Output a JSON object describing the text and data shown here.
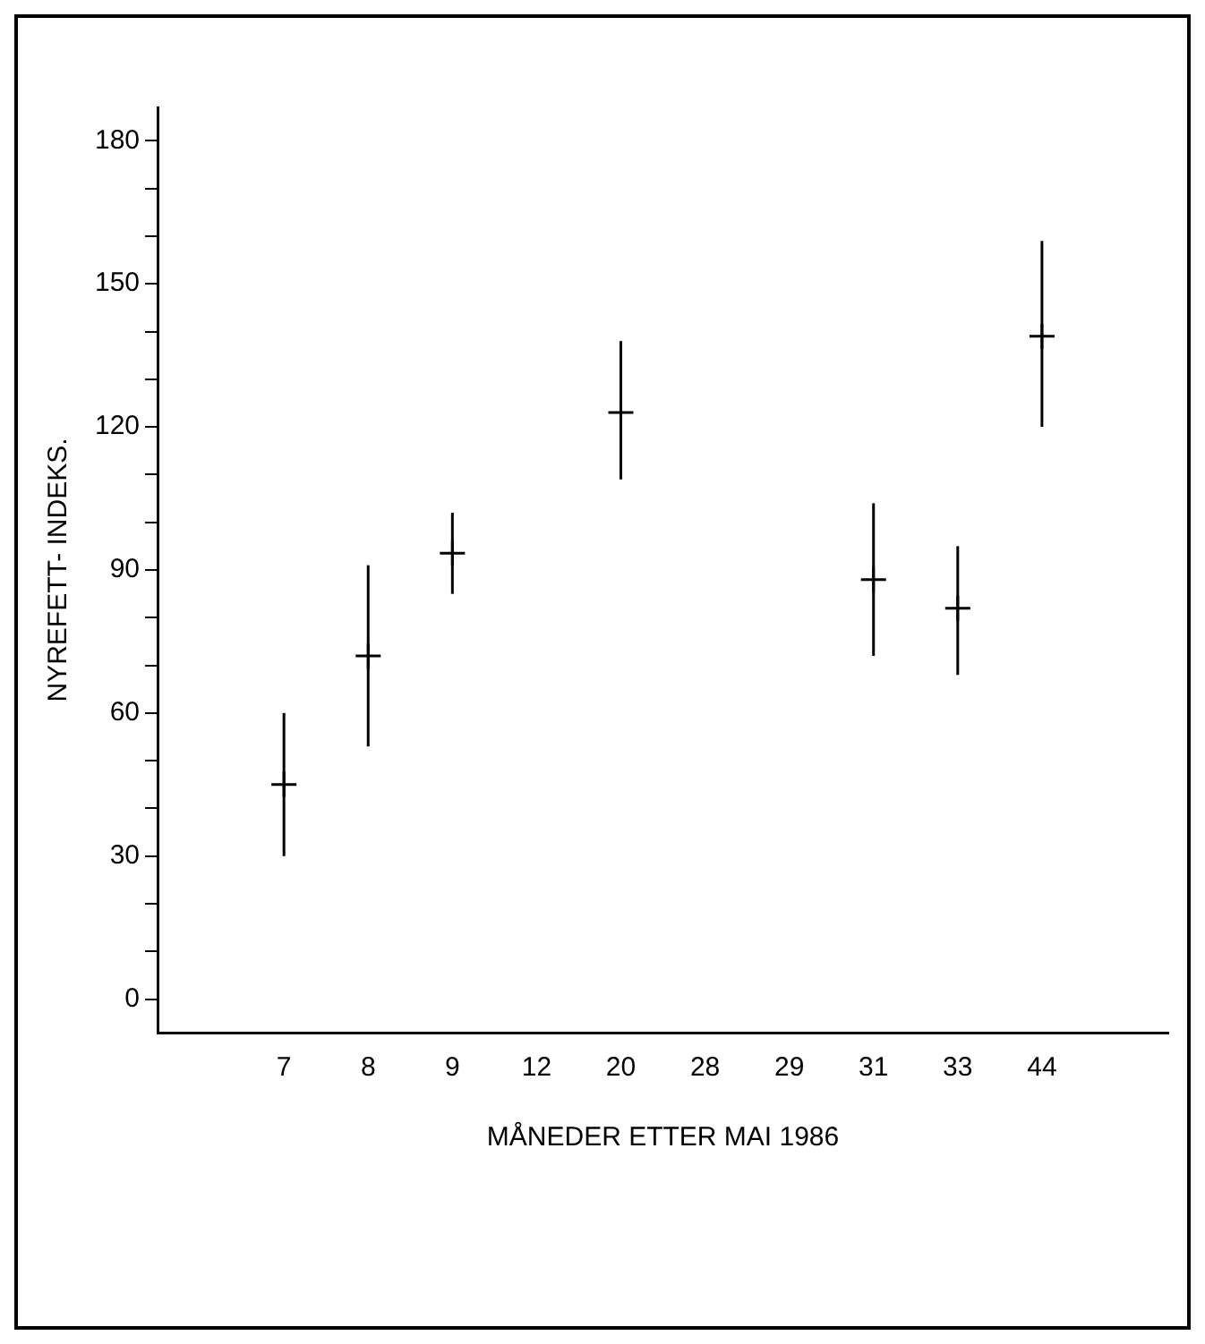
{
  "chart_data": {
    "type": "scatter",
    "xlabel": "MÅNEDER ETTER MAI 1986",
    "ylabel": "NYREFETT- INDEKS.",
    "categories": [
      null,
      "7",
      "8",
      "9",
      "12",
      "20",
      "28",
      "29",
      "31",
      "33",
      "44",
      null
    ],
    "values": [
      null,
      45,
      72,
      93.5,
      null,
      123,
      null,
      null,
      88,
      82,
      139,
      null
    ],
    "errors": [
      null,
      [
        30,
        60
      ],
      [
        53,
        91
      ],
      [
        85,
        102
      ],
      null,
      [
        109,
        138
      ],
      null,
      null,
      [
        72,
        104
      ],
      [
        68,
        95
      ],
      [
        120,
        159
      ],
      null
    ],
    "color": "#000000",
    "marker": "cross",
    "grid": false,
    "legend": false,
    "ylim": [
      -7,
      187
    ],
    "yticks": [
      0,
      {
        "value": 10,
        "label": null
      },
      {
        "value": 20,
        "label": null
      },
      30,
      {
        "value": 40,
        "label": null
      },
      {
        "value": 50,
        "label": null
      },
      60,
      {
        "value": 70,
        "label": null
      },
      {
        "value": 80,
        "label": null
      },
      90,
      {
        "value": 100,
        "label": null
      },
      {
        "value": 110,
        "label": null
      },
      120,
      {
        "value": 130,
        "label": null
      },
      {
        "value": 140,
        "label": null
      },
      150,
      {
        "value": 160,
        "label": null
      },
      {
        "value": 170,
        "label": null
      },
      180
    ]
  }
}
